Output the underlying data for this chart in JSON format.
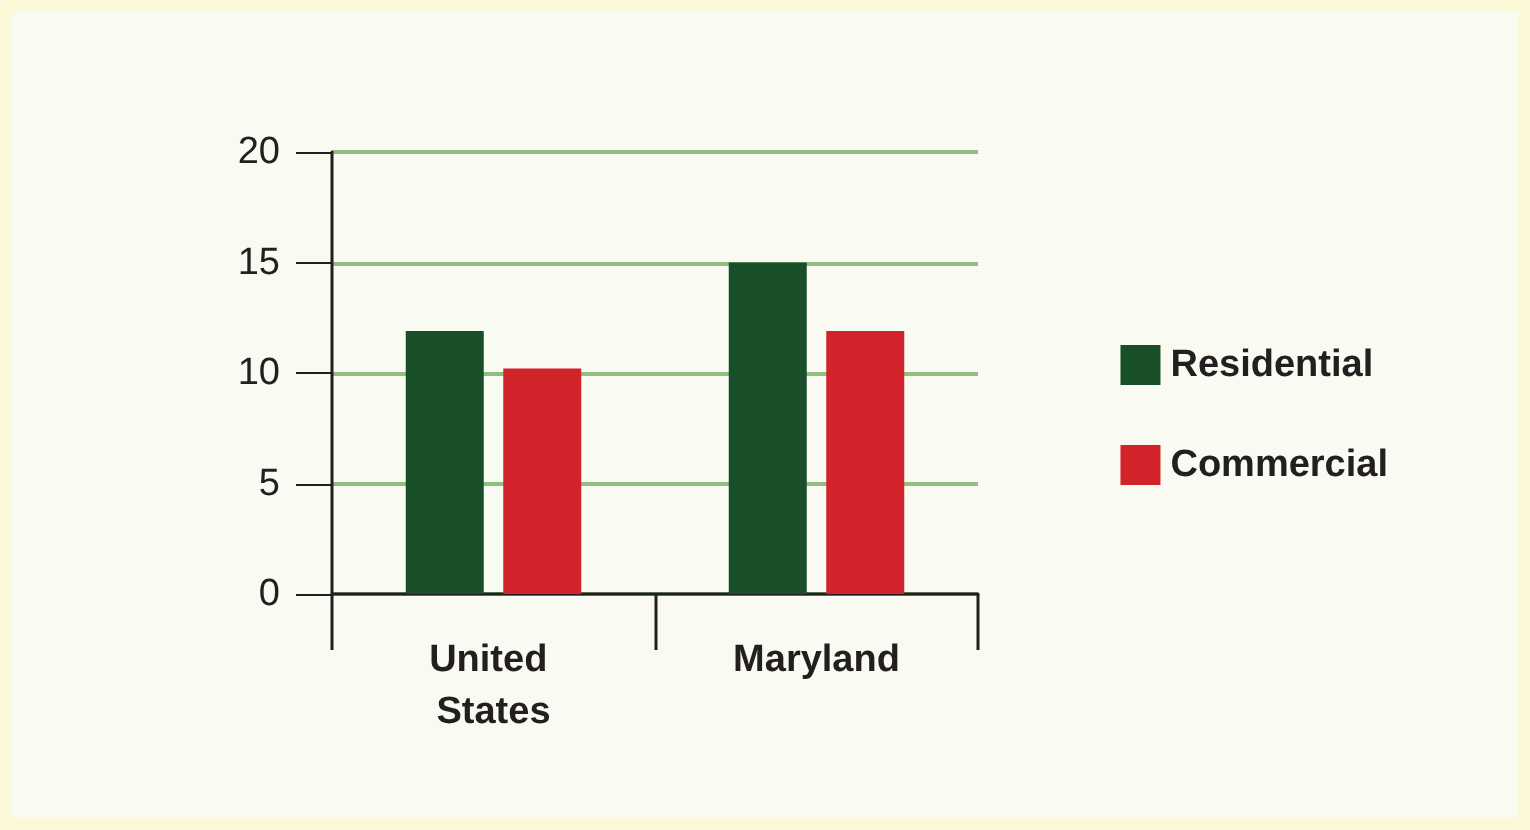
{
  "chart_data": {
    "type": "bar",
    "categories": [
      "United States",
      "Maryland"
    ],
    "series": [
      {
        "name": "Residential",
        "color": "#184f28",
        "values": [
          11.9,
          15
        ]
      },
      {
        "name": "Commercial",
        "color": "#d2232b",
        "values": [
          10.2,
          11.9
        ]
      }
    ],
    "ylim": [
      0,
      20
    ],
    "yticks": [
      0,
      5,
      10,
      15,
      20
    ],
    "grid": "y",
    "legend": "right"
  }
}
